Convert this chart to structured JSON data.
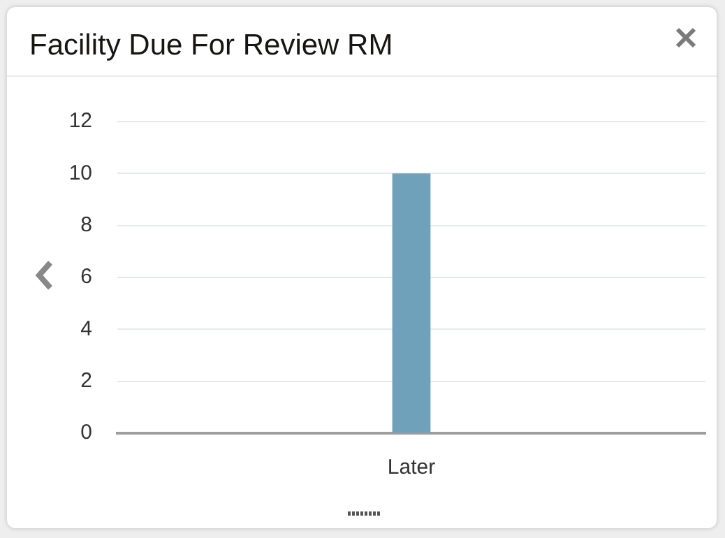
{
  "chart_data": {
    "type": "bar",
    "title": "Facility Due For Review RM",
    "categories": [
      "Later"
    ],
    "values": [
      10
    ],
    "color": "#6fa1bb",
    "ylim": [
      0,
      12
    ],
    "yticks": [
      0,
      2,
      4,
      6,
      8,
      10,
      12
    ],
    "grid": "y",
    "legend": false
  }
}
